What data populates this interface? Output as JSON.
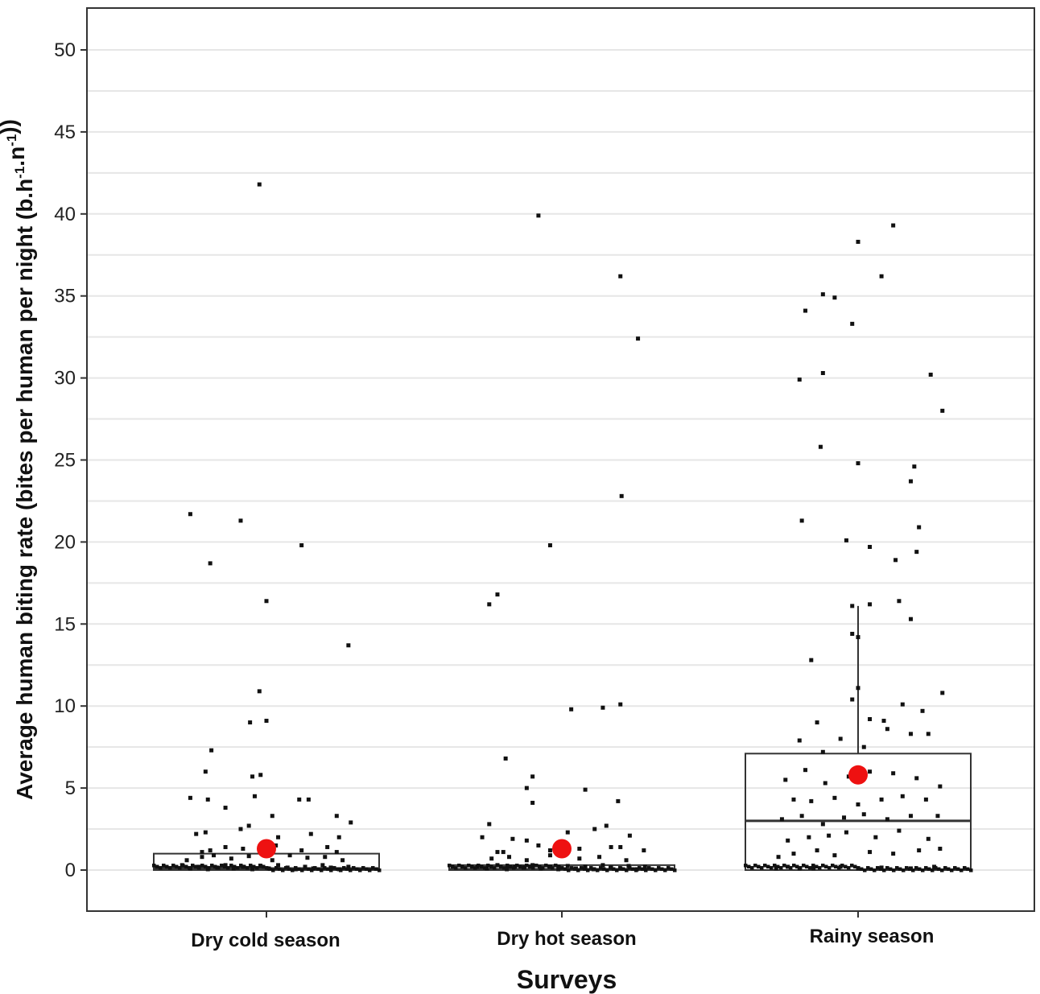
{
  "chart_data": {
    "type": "boxplot",
    "xlabel": "Surveys",
    "ylabel": {
      "parts": [
        {
          "text": "Average human biting rate (bites per human per night (b.h"
        },
        {
          "text": "-1",
          "sup": true
        },
        {
          "text": ".n"
        },
        {
          "text": "-1",
          "sup": true
        },
        {
          "text": "))"
        }
      ]
    },
    "ylim": [
      -2.5,
      52.5
    ],
    "yticks": [
      0,
      5,
      10,
      15,
      20,
      25,
      30,
      35,
      40,
      45,
      50
    ],
    "grid": "horizontal",
    "categories": [
      "Dry cold season",
      "Dry hot season",
      "Rainy season"
    ],
    "colors": {
      "points": "#111111",
      "mean_marker": "#ee1111",
      "box": "#333333",
      "grid": "#e6e6e6",
      "panel_border": "#333333"
    },
    "groups": [
      {
        "name": "Dry cold season",
        "box": {
          "min": 0,
          "q1": 0,
          "median": 0.1,
          "q3": 1.0,
          "max": 1.0
        },
        "mean": 1.3,
        "outliers": [
          41.8,
          21.7,
          21.3,
          19.8,
          18.7,
          16.4,
          13.7,
          10.9,
          9.1,
          9.0,
          7.3,
          6.0,
          5.8,
          5.7,
          4.4,
          4.3,
          4.3,
          4.3,
          3.8,
          3.3,
          3.3,
          2.9,
          2.7,
          2.6,
          2.5,
          2.3,
          2.2,
          2.2,
          2.0,
          1.9,
          1.9,
          1.7,
          1.5,
          1.5,
          1.4,
          1.4,
          1.3,
          1.2,
          1.2,
          1.1
        ],
        "points": [
          [
            -0.72,
            0.3
          ],
          [
            -0.65,
            0.1
          ],
          [
            -0.58,
            0.2
          ],
          [
            -0.5,
            0.05
          ],
          [
            -0.42,
            0.15
          ],
          [
            -0.35,
            0.3
          ],
          [
            -0.28,
            0.1
          ],
          [
            -0.2,
            0.2
          ],
          [
            -0.12,
            0.05
          ],
          [
            -0.05,
            0.25
          ],
          [
            0.02,
            0.1
          ],
          [
            0.1,
            0.3
          ],
          [
            0.18,
            0.15
          ],
          [
            0.25,
            0.05
          ],
          [
            0.33,
            0.2
          ],
          [
            0.4,
            0.1
          ],
          [
            0.48,
            0.3
          ],
          [
            0.55,
            0.15
          ],
          [
            0.62,
            0.05
          ],
          [
            0.7,
            0.2
          ],
          [
            -0.68,
            0.6
          ],
          [
            -0.55,
            0.8
          ],
          [
            -0.45,
            0.9
          ],
          [
            -0.3,
            0.7
          ],
          [
            -0.15,
            0.85
          ],
          [
            0.05,
            0.6
          ],
          [
            0.2,
            0.9
          ],
          [
            0.35,
            0.75
          ],
          [
            0.5,
            0.8
          ],
          [
            0.65,
            0.6
          ],
          [
            -0.55,
            1.1
          ],
          [
            -0.48,
            1.2
          ],
          [
            -0.35,
            1.4
          ],
          [
            -0.2,
            1.3
          ],
          [
            0.08,
            1.5
          ],
          [
            0.3,
            1.2
          ],
          [
            0.52,
            1.4
          ],
          [
            0.6,
            1.1
          ],
          [
            -0.6,
            2.2
          ],
          [
            -0.52,
            2.3
          ],
          [
            -0.22,
            2.5
          ],
          [
            -0.15,
            2.7
          ],
          [
            0.1,
            2.0
          ],
          [
            0.38,
            2.2
          ],
          [
            0.62,
            2.0
          ],
          [
            -0.65,
            4.4
          ],
          [
            -0.5,
            4.3
          ],
          [
            -0.35,
            3.8
          ],
          [
            -0.1,
            4.5
          ],
          [
            0.05,
            3.3
          ],
          [
            0.28,
            4.3
          ],
          [
            0.36,
            4.3
          ],
          [
            0.6,
            3.3
          ],
          [
            0.72,
            2.9
          ],
          [
            -0.52,
            6.0
          ],
          [
            -0.47,
            7.3
          ],
          [
            -0.12,
            5.7
          ],
          [
            -0.05,
            5.8
          ],
          [
            -0.14,
            9.0
          ],
          [
            0.0,
            9.1
          ],
          [
            -0.06,
            10.9
          ],
          [
            0.7,
            13.7
          ],
          [
            0.0,
            16.4
          ],
          [
            0.3,
            19.8
          ],
          [
            -0.48,
            18.7
          ],
          [
            -0.22,
            21.3
          ],
          [
            -0.65,
            21.7
          ],
          [
            -0.06,
            41.8
          ]
        ]
      },
      {
        "name": "Dry hot season",
        "box": {
          "min": 0,
          "q1": 0,
          "median": 0.05,
          "q3": 0.3,
          "max": 0.3
        },
        "mean": 1.3,
        "outliers": [
          39.9,
          36.2,
          32.4,
          22.8,
          19.8,
          16.8,
          16.2,
          10.1,
          9.9,
          9.8,
          6.8,
          5.7,
          5.0,
          4.9,
          4.2,
          4.1,
          2.8,
          2.7,
          2.5,
          2.3,
          2.1,
          2.0,
          1.9,
          1.8,
          1.5,
          1.4,
          1.3,
          1.2,
          1.2,
          1.1
        ],
        "points": [
          [
            -0.72,
            0.2
          ],
          [
            -0.64,
            0.1
          ],
          [
            -0.55,
            0.3
          ],
          [
            -0.47,
            0.05
          ],
          [
            -0.4,
            0.2
          ],
          [
            -0.32,
            0.15
          ],
          [
            -0.25,
            0.3
          ],
          [
            -0.18,
            0.1
          ],
          [
            -0.1,
            0.2
          ],
          [
            -0.03,
            0.05
          ],
          [
            0.05,
            0.25
          ],
          [
            0.12,
            0.1
          ],
          [
            0.2,
            0.2
          ],
          [
            0.27,
            0.05
          ],
          [
            0.35,
            0.3
          ],
          [
            0.42,
            0.15
          ],
          [
            0.5,
            0.1
          ],
          [
            0.57,
            0.25
          ],
          [
            0.64,
            0.05
          ],
          [
            0.71,
            0.2
          ],
          [
            -0.6,
            0.7
          ],
          [
            -0.45,
            0.8
          ],
          [
            -0.3,
            0.6
          ],
          [
            -0.1,
            0.9
          ],
          [
            0.15,
            0.7
          ],
          [
            0.32,
            0.8
          ],
          [
            0.55,
            0.6
          ],
          [
            -0.55,
            1.1
          ],
          [
            -0.5,
            1.1
          ],
          [
            -0.1,
            1.2
          ],
          [
            0.15,
            1.3
          ],
          [
            0.42,
            1.4
          ],
          [
            0.5,
            1.4
          ],
          [
            0.7,
            1.2
          ],
          [
            -0.68,
            2.0
          ],
          [
            -0.42,
            1.9
          ],
          [
            -0.3,
            1.8
          ],
          [
            -0.2,
            1.5
          ],
          [
            0.05,
            2.3
          ],
          [
            0.28,
            2.5
          ],
          [
            0.38,
            2.7
          ],
          [
            0.58,
            2.1
          ],
          [
            -0.62,
            2.8
          ],
          [
            -0.25,
            4.1
          ],
          [
            -0.3,
            5.0
          ],
          [
            0.2,
            4.9
          ],
          [
            -0.48,
            6.8
          ],
          [
            -0.25,
            5.7
          ],
          [
            0.08,
            9.8
          ],
          [
            0.35,
            9.9
          ],
          [
            0.5,
            10.1
          ],
          [
            0.48,
            4.2
          ],
          [
            -0.62,
            16.2
          ],
          [
            -0.55,
            16.8
          ],
          [
            -0.1,
            19.8
          ],
          [
            0.51,
            22.8
          ],
          [
            0.65,
            32.4
          ],
          [
            0.5,
            36.2
          ],
          [
            -0.2,
            39.9
          ]
        ]
      },
      {
        "name": "Rainy season",
        "box": {
          "min": 0,
          "q1": 0,
          "median": 3.0,
          "q3": 7.1,
          "max": 16.1
        },
        "mean": 5.8,
        "outliers": [
          39.3,
          38.3,
          36.2,
          35.1,
          34.9,
          34.1,
          33.3,
          30.3,
          30.2,
          29.9,
          28.0,
          25.8,
          24.8,
          24.6,
          23.7,
          21.3,
          20.9,
          20.1,
          19.7,
          19.4,
          18.9,
          16.4
        ],
        "points": [
          [
            -0.7,
            0.1
          ],
          [
            -0.6,
            0.2
          ],
          [
            -0.5,
            0.1
          ],
          [
            -0.38,
            0.1
          ],
          [
            -0.15,
            0.2
          ],
          [
            0.0,
            0.1
          ],
          [
            0.2,
            0.15
          ],
          [
            0.45,
            0.1
          ],
          [
            0.65,
            0.2
          ],
          [
            -0.68,
            0.8
          ],
          [
            -0.55,
            1.0
          ],
          [
            -0.35,
            1.2
          ],
          [
            -0.2,
            0.9
          ],
          [
            0.1,
            1.1
          ],
          [
            0.3,
            1.0
          ],
          [
            0.52,
            1.2
          ],
          [
            0.7,
            1.3
          ],
          [
            -0.6,
            1.8
          ],
          [
            -0.42,
            2.0
          ],
          [
            -0.25,
            2.1
          ],
          [
            -0.1,
            2.3
          ],
          [
            0.15,
            2.0
          ],
          [
            0.35,
            2.4
          ],
          [
            0.6,
            1.9
          ],
          [
            -0.65,
            3.1
          ],
          [
            -0.48,
            3.3
          ],
          [
            -0.3,
            2.8
          ],
          [
            -0.12,
            3.2
          ],
          [
            0.05,
            3.4
          ],
          [
            0.25,
            3.1
          ],
          [
            0.45,
            3.3
          ],
          [
            0.68,
            3.3
          ],
          [
            -0.55,
            4.3
          ],
          [
            -0.4,
            4.2
          ],
          [
            -0.2,
            4.4
          ],
          [
            0.0,
            4.0
          ],
          [
            0.2,
            4.3
          ],
          [
            0.38,
            4.5
          ],
          [
            0.58,
            4.3
          ],
          [
            -0.62,
            5.5
          ],
          [
            -0.45,
            6.1
          ],
          [
            -0.28,
            5.3
          ],
          [
            -0.08,
            5.7
          ],
          [
            0.1,
            6.0
          ],
          [
            0.3,
            5.9
          ],
          [
            0.5,
            5.6
          ],
          [
            0.7,
            5.1
          ],
          [
            -0.5,
            7.9
          ],
          [
            -0.3,
            7.2
          ],
          [
            -0.15,
            8.0
          ],
          [
            0.05,
            7.5
          ],
          [
            0.25,
            8.6
          ],
          [
            0.45,
            8.3
          ],
          [
            0.6,
            8.3
          ],
          [
            -0.35,
            9.0
          ],
          [
            0.1,
            9.2
          ],
          [
            0.22,
            9.1
          ],
          [
            0.38,
            10.1
          ],
          [
            0.55,
            9.7
          ],
          [
            0.72,
            10.8
          ],
          [
            -0.4,
            12.8
          ],
          [
            -0.05,
            10.4
          ],
          [
            0.0,
            14.2
          ],
          [
            0.0,
            11.1
          ],
          [
            -0.05,
            14.4
          ],
          [
            -0.05,
            16.1
          ],
          [
            0.1,
            16.2
          ],
          [
            0.35,
            16.4
          ],
          [
            0.45,
            15.3
          ],
          [
            -0.32,
            25.8
          ],
          [
            -0.48,
            21.3
          ],
          [
            -0.1,
            20.1
          ],
          [
            0.1,
            19.7
          ],
          [
            0.32,
            18.9
          ],
          [
            0.5,
            19.4
          ],
          [
            0.52,
            20.9
          ],
          [
            0.48,
            24.6
          ],
          [
            0.45,
            23.7
          ],
          [
            -0.5,
            29.9
          ],
          [
            -0.3,
            30.3
          ],
          [
            0.0,
            24.8
          ],
          [
            0.62,
            30.2
          ],
          [
            0.72,
            28.0
          ],
          [
            -0.45,
            34.1
          ],
          [
            -0.3,
            35.1
          ],
          [
            -0.2,
            34.9
          ],
          [
            -0.05,
            33.3
          ],
          [
            0.0,
            38.3
          ],
          [
            0.2,
            36.2
          ],
          [
            0.3,
            39.3
          ]
        ]
      }
    ]
  }
}
